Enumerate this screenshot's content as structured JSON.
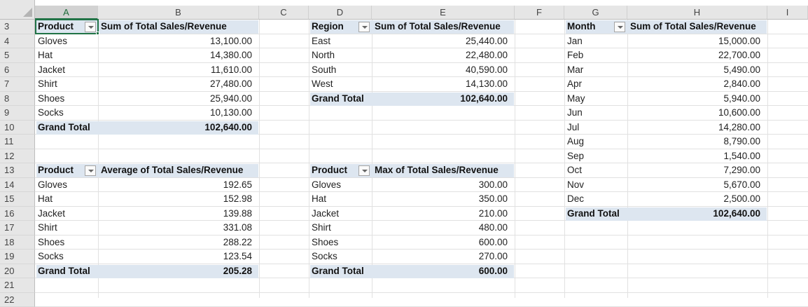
{
  "columns": [
    "A",
    "B",
    "C",
    "D",
    "E",
    "F",
    "G",
    "H",
    "I"
  ],
  "rows": [
    "3",
    "4",
    "5",
    "6",
    "7",
    "8",
    "9",
    "10",
    "11",
    "12",
    "13",
    "14",
    "15",
    "16",
    "17",
    "18",
    "19",
    "20",
    "21",
    "22"
  ],
  "pivot_sum_product": {
    "row_label": "Product",
    "value_label": "Sum of Total Sales/Revenue",
    "items": [
      {
        "label": "Gloves",
        "value": "13,100.00"
      },
      {
        "label": "Hat",
        "value": "14,380.00"
      },
      {
        "label": "Jacket",
        "value": "11,610.00"
      },
      {
        "label": "Shirt",
        "value": "27,480.00"
      },
      {
        "label": "Shoes",
        "value": "25,940.00"
      },
      {
        "label": "Socks",
        "value": "10,130.00"
      }
    ],
    "total_label": "Grand Total",
    "total_value": "102,640.00"
  },
  "pivot_sum_region": {
    "row_label": "Region",
    "value_label": "Sum of Total Sales/Revenue",
    "items": [
      {
        "label": "East",
        "value": "25,440.00"
      },
      {
        "label": "North",
        "value": "22,480.00"
      },
      {
        "label": "South",
        "value": "40,590.00"
      },
      {
        "label": "West",
        "value": "14,130.00"
      }
    ],
    "total_label": "Grand Total",
    "total_value": "102,640.00"
  },
  "pivot_sum_month": {
    "row_label": "Month",
    "value_label": "Sum of Total Sales/Revenue",
    "items": [
      {
        "label": "Jan",
        "value": "15,000.00"
      },
      {
        "label": "Feb",
        "value": "22,700.00"
      },
      {
        "label": "Mar",
        "value": "5,490.00"
      },
      {
        "label": "Apr",
        "value": "2,840.00"
      },
      {
        "label": "May",
        "value": "5,940.00"
      },
      {
        "label": "Jun",
        "value": "10,600.00"
      },
      {
        "label": "Jul",
        "value": "14,280.00"
      },
      {
        "label": "Aug",
        "value": "8,790.00"
      },
      {
        "label": "Sep",
        "value": "1,540.00"
      },
      {
        "label": "Oct",
        "value": "7,290.00"
      },
      {
        "label": "Nov",
        "value": "5,670.00"
      },
      {
        "label": "Dec",
        "value": "2,500.00"
      }
    ],
    "total_label": "Grand Total",
    "total_value": "102,640.00"
  },
  "pivot_avg_product": {
    "row_label": "Product",
    "value_label": "Average of Total Sales/Revenue",
    "items": [
      {
        "label": "Gloves",
        "value": "192.65"
      },
      {
        "label": "Hat",
        "value": "152.98"
      },
      {
        "label": "Jacket",
        "value": "139.88"
      },
      {
        "label": "Shirt",
        "value": "331.08"
      },
      {
        "label": "Shoes",
        "value": "288.22"
      },
      {
        "label": "Socks",
        "value": "123.54"
      }
    ],
    "total_label": "Grand Total",
    "total_value": "205.28"
  },
  "pivot_max_product": {
    "row_label": "Product",
    "value_label": "Max of Total Sales/Revenue",
    "items": [
      {
        "label": "Gloves",
        "value": "300.00"
      },
      {
        "label": "Hat",
        "value": "350.00"
      },
      {
        "label": "Jacket",
        "value": "210.00"
      },
      {
        "label": "Shirt",
        "value": "480.00"
      },
      {
        "label": "Shoes",
        "value": "600.00"
      },
      {
        "label": "Socks",
        "value": "270.00"
      }
    ],
    "total_label": "Grand Total",
    "total_value": "600.00"
  },
  "colors": {
    "header_band": "#dde6f0",
    "selection": "#217346",
    "gridline": "#e1e1e1"
  }
}
